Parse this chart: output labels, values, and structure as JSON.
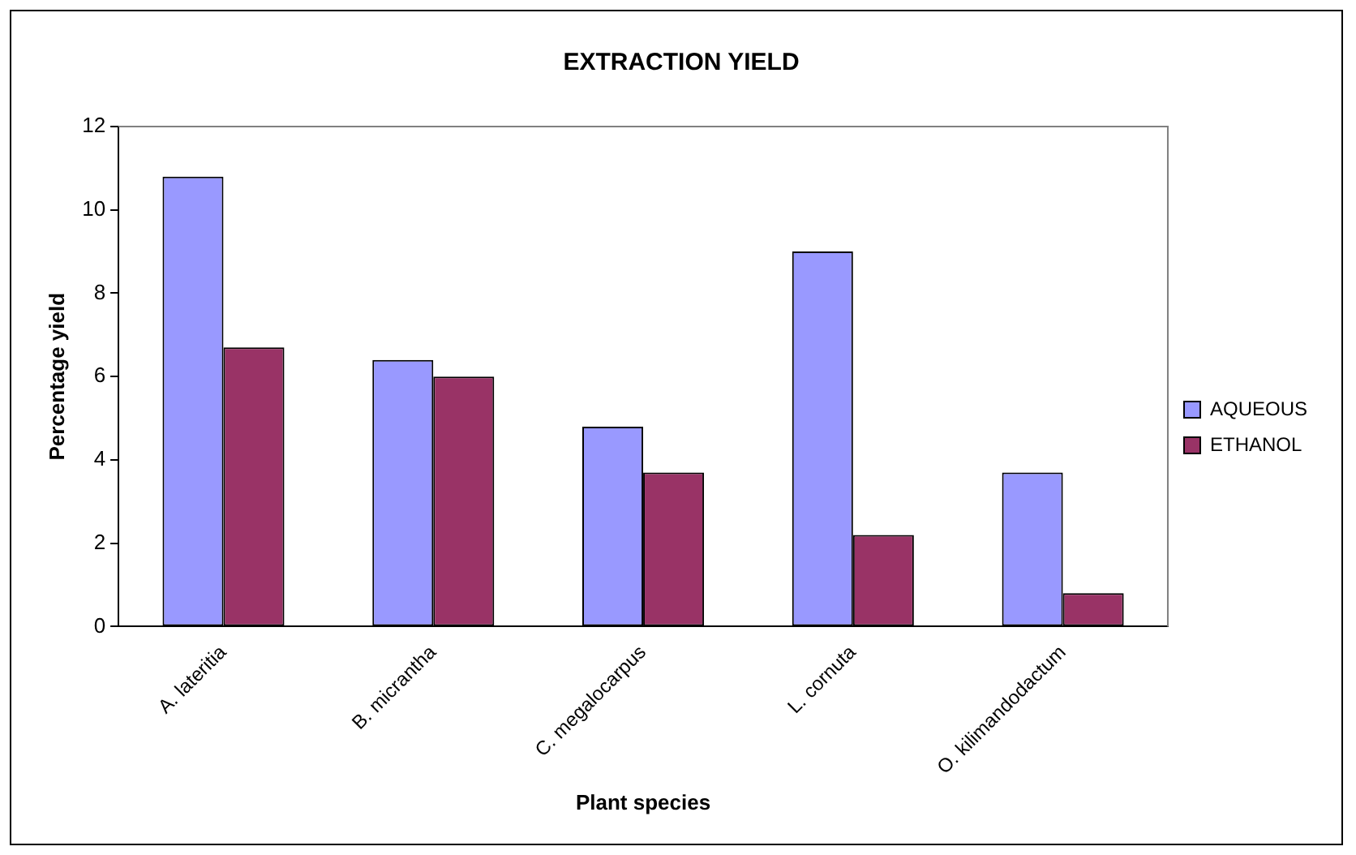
{
  "chart_data": {
    "type": "bar",
    "title": "EXTRACTION YIELD",
    "xlabel": "Plant species",
    "ylabel": "Percentage yield",
    "categories": [
      "A. lateritia",
      "B. micrantha",
      "C. megalocarpus",
      "L. cornuta",
      "O. kilimandodactum"
    ],
    "series": [
      {
        "name": "AQUEOUS",
        "color": "#9999ff",
        "values": [
          10.8,
          6.4,
          4.8,
          9.0,
          3.7
        ]
      },
      {
        "name": "ETHANOL",
        "color": "#993366",
        "values": [
          6.7,
          6.0,
          3.7,
          2.2,
          0.8
        ]
      }
    ],
    "ylim": [
      0,
      12
    ],
    "yticks": [
      0,
      2,
      4,
      6,
      8,
      10,
      12
    ],
    "grid": false,
    "legend": "right"
  }
}
